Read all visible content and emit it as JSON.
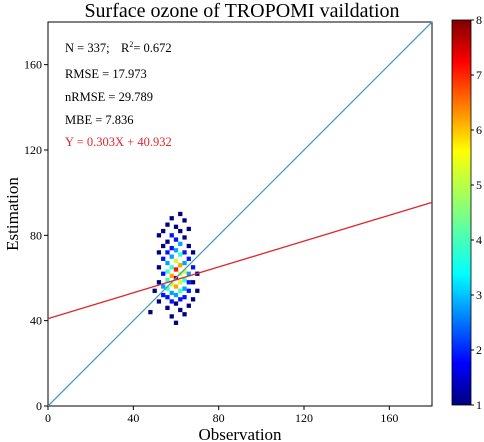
{
  "chart_data": {
    "type": "heatmap",
    "title": "Surface ozone of TROPOMI vaildation",
    "xlabel": "Observation",
    "ylabel": "Estimation",
    "xlim": [
      0,
      180
    ],
    "ylim": [
      0,
      180
    ],
    "xticks": [
      0,
      40,
      80,
      120,
      160
    ],
    "yticks": [
      0,
      40,
      80,
      120,
      160
    ],
    "xtick_labels": [
      "0",
      "40",
      "80",
      "120",
      "160"
    ],
    "ytick_labels": [
      "0",
      "40",
      "80",
      "120",
      "160"
    ],
    "grid": false,
    "stats": {
      "n": "N = 337;",
      "r2_prefix": "R",
      "r2_sup": "2",
      "r2_value": "= 0.672",
      "rmse": "RMSE = 17.973",
      "nrmse": "nRMSE = 29.789",
      "mbe": "MBE = 7.836",
      "fit_equation": "Y = 0.303X + 40.932"
    },
    "reference_line": {
      "slope": 1,
      "intercept": 0,
      "color": "#4b9cc0"
    },
    "fit_line": {
      "slope": 0.303,
      "intercept": 40.932,
      "color": "#e0262f"
    },
    "colorbar": {
      "min": 1,
      "max": 8,
      "ticks": [
        "1",
        "2",
        "3",
        "4",
        "5",
        "6",
        "7",
        "8"
      ],
      "colormap": "jet"
    },
    "bin_size": 2,
    "density_bins": [
      [
        62,
        90,
        1
      ],
      [
        58,
        88,
        1
      ],
      [
        64,
        87,
        1
      ],
      [
        56,
        85,
        1
      ],
      [
        60,
        84,
        1
      ],
      [
        66,
        83,
        1
      ],
      [
        54,
        82,
        1
      ],
      [
        62,
        82,
        1
      ],
      [
        52,
        80,
        1
      ],
      [
        58,
        80,
        2
      ],
      [
        64,
        79,
        1
      ],
      [
        60,
        78,
        2
      ],
      [
        56,
        77,
        1
      ],
      [
        62,
        76,
        3
      ],
      [
        54,
        75,
        1
      ],
      [
        66,
        75,
        1
      ],
      [
        58,
        74,
        2
      ],
      [
        60,
        73,
        3
      ],
      [
        52,
        72,
        1
      ],
      [
        56,
        72,
        2
      ],
      [
        64,
        72,
        2
      ],
      [
        68,
        72,
        1
      ],
      [
        62,
        71,
        4
      ],
      [
        58,
        70,
        3
      ],
      [
        54,
        69,
        2
      ],
      [
        66,
        69,
        2
      ],
      [
        60,
        68,
        5
      ],
      [
        56,
        67,
        3
      ],
      [
        64,
        67,
        3
      ],
      [
        62,
        66,
        6
      ],
      [
        58,
        65,
        4
      ],
      [
        52,
        65,
        1
      ],
      [
        68,
        65,
        2
      ],
      [
        60,
        64,
        7
      ],
      [
        56,
        63,
        4
      ],
      [
        64,
        63,
        5
      ],
      [
        54,
        62,
        2
      ],
      [
        62,
        62,
        5
      ],
      [
        66,
        62,
        3
      ],
      [
        70,
        62,
        1
      ],
      [
        58,
        61,
        6
      ],
      [
        60,
        60,
        8
      ],
      [
        56,
        59,
        4
      ],
      [
        64,
        59,
        4
      ],
      [
        52,
        58,
        1
      ],
      [
        62,
        58,
        5
      ],
      [
        66,
        58,
        2
      ],
      [
        68,
        58,
        1
      ],
      [
        58,
        57,
        5
      ],
      [
        60,
        56,
        6
      ],
      [
        54,
        56,
        3
      ],
      [
        64,
        55,
        3
      ],
      [
        56,
        55,
        4
      ],
      [
        62,
        54,
        4
      ],
      [
        50,
        54,
        1
      ],
      [
        66,
        54,
        2
      ],
      [
        70,
        54,
        1
      ],
      [
        58,
        53,
        3
      ],
      [
        60,
        52,
        3
      ],
      [
        54,
        52,
        2
      ],
      [
        64,
        51,
        2
      ],
      [
        56,
        51,
        2
      ],
      [
        62,
        50,
        2
      ],
      [
        68,
        50,
        1
      ],
      [
        58,
        49,
        2
      ],
      [
        52,
        49,
        1
      ],
      [
        60,
        48,
        1
      ],
      [
        66,
        47,
        1
      ],
      [
        56,
        46,
        1
      ],
      [
        62,
        45,
        1
      ],
      [
        48,
        44,
        1
      ],
      [
        64,
        43,
        1
      ],
      [
        58,
        42,
        1
      ],
      [
        60,
        39,
        1
      ]
    ]
  }
}
